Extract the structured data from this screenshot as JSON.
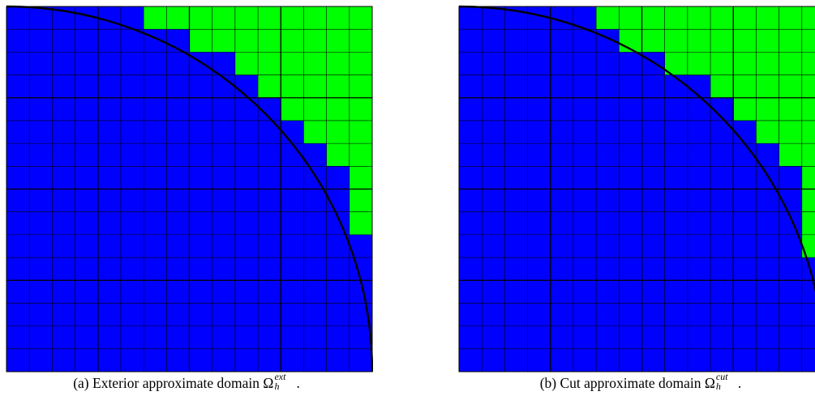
{
  "colors": {
    "inside": "#0000ff",
    "outside": "#00ff00",
    "grid_line": "#000000",
    "boundary_curve": "#000000",
    "background": "#ffffff"
  },
  "panels": [
    {
      "caption_label": "(a)",
      "caption_text": "Exterior approximate domain",
      "symbol": "Ω",
      "superscript": "ext",
      "subscript": "h",
      "trailing": ".",
      "green_cells_per_row": [
        10,
        8,
        6,
        5,
        4,
        3,
        2,
        1,
        1,
        1,
        0,
        0,
        0,
        0,
        0,
        0
      ]
    },
    {
      "caption_label": "(b)",
      "caption_text": "Cut approximate domain",
      "symbol": "Ω",
      "superscript": "cut",
      "subscript": "h",
      "trailing": ".",
      "green_cells_per_row": [
        10,
        9,
        7,
        5,
        4,
        3,
        2,
        1,
        1,
        1,
        1,
        0,
        0,
        0,
        0,
        0
      ]
    }
  ]
}
